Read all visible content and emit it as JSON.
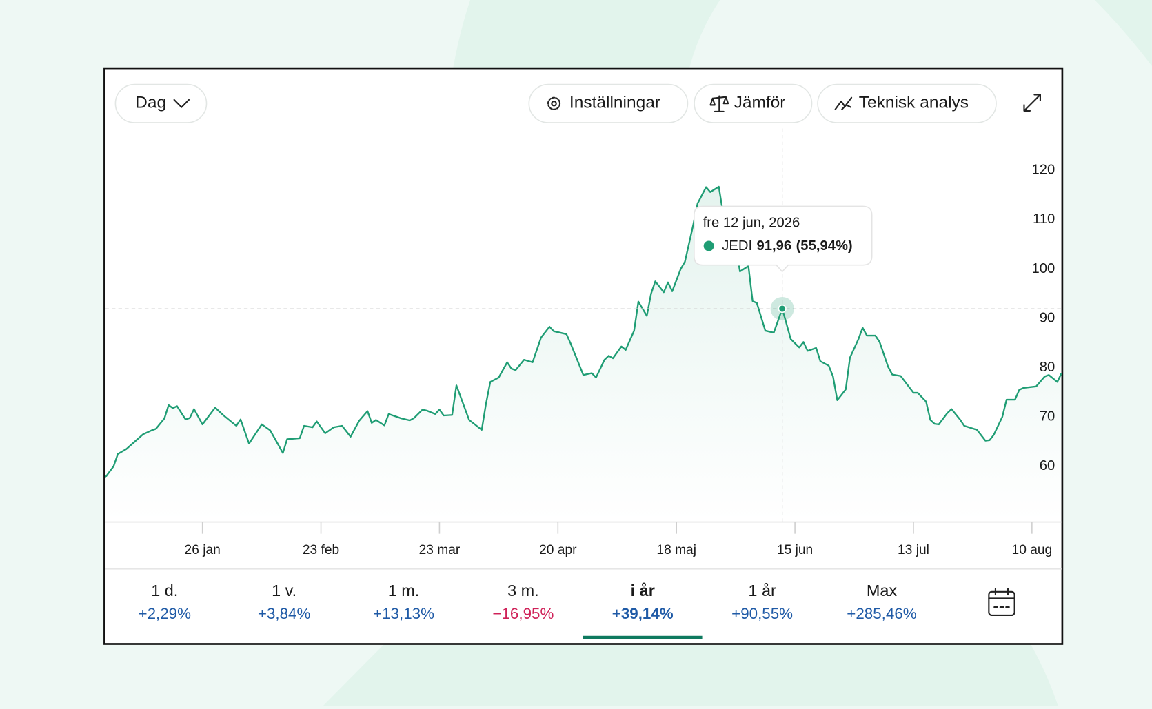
{
  "toolbar": {
    "interval": "Dag",
    "settings": "Inställningar",
    "compare": "Jämför",
    "analysis": "Teknisk analys"
  },
  "chart_data": {
    "type": "line",
    "x": [
      "2026-01-03",
      "2026-01-05",
      "2026-01-06",
      "2026-01-08",
      "2026-01-10",
      "2026-01-12",
      "2026-01-14",
      "2026-01-15",
      "2026-01-17",
      "2026-01-18",
      "2026-01-19",
      "2026-01-20",
      "2026-01-22",
      "2026-01-23",
      "2026-01-24",
      "2026-01-26",
      "2026-01-29",
      "2026-01-31",
      "2026-02-03",
      "2026-02-04",
      "2026-02-06",
      "2026-02-09",
      "2026-02-11",
      "2026-02-14",
      "2026-02-15",
      "2026-02-18",
      "2026-02-19",
      "2026-02-21",
      "2026-02-22",
      "2026-02-24",
      "2026-02-26",
      "2026-02-28",
      "2026-03-02",
      "2026-03-04",
      "2026-03-06",
      "2026-03-07",
      "2026-03-08",
      "2026-03-10",
      "2026-03-11",
      "2026-03-14",
      "2026-03-16",
      "2026-03-17",
      "2026-03-19",
      "2026-03-20",
      "2026-03-22",
      "2026-03-23",
      "2026-03-24",
      "2026-03-26",
      "2026-03-27",
      "2026-03-30",
      "2026-04-02",
      "2026-04-03",
      "2026-04-04",
      "2026-04-06",
      "2026-04-08",
      "2026-04-09",
      "2026-04-10",
      "2026-04-12",
      "2026-04-14",
      "2026-04-16",
      "2026-04-18",
      "2026-04-19",
      "2026-04-22",
      "2026-04-23",
      "2026-04-26",
      "2026-04-28",
      "2026-04-29",
      "2026-05-01",
      "2026-05-02",
      "2026-05-03",
      "2026-05-05",
      "2026-05-06",
      "2026-05-08",
      "2026-05-09",
      "2026-05-11",
      "2026-05-12",
      "2026-05-13",
      "2026-05-15",
      "2026-05-16",
      "2026-05-17",
      "2026-05-19",
      "2026-05-20",
      "2026-05-22",
      "2026-05-23",
      "2026-05-25",
      "2026-05-26",
      "2026-05-28",
      "2026-05-29",
      "2026-05-30",
      "2026-06-01",
      "2026-06-02",
      "2026-06-04",
      "2026-06-05",
      "2026-06-06",
      "2026-06-08",
      "2026-06-10",
      "2026-06-12",
      "2026-06-14",
      "2026-06-16",
      "2026-06-17",
      "2026-06-18",
      "2026-06-20",
      "2026-06-21",
      "2026-06-23",
      "2026-06-24",
      "2026-06-25",
      "2026-06-27",
      "2026-06-28",
      "2026-06-30",
      "2026-07-01",
      "2026-07-02",
      "2026-07-04",
      "2026-07-05",
      "2026-07-07",
      "2026-07-08",
      "2026-07-10",
      "2026-07-13",
      "2026-07-14",
      "2026-07-16",
      "2026-07-17",
      "2026-07-18",
      "2026-07-19",
      "2026-07-21",
      "2026-07-22",
      "2026-07-24",
      "2026-07-25",
      "2026-07-28",
      "2026-07-30",
      "2026-07-31",
      "2026-08-01",
      "2026-08-03",
      "2026-08-04",
      "2026-08-06",
      "2026-08-07",
      "2026-08-08",
      "2026-08-11",
      "2026-08-13",
      "2026-08-14",
      "2026-08-16",
      "2026-08-17"
    ],
    "series": [
      {
        "name": "JEDI",
        "color": "#1f9d74",
        "values": [
          57.7,
          60,
          62.5,
          63.5,
          65,
          66.5,
          67.3,
          67.6,
          69.7,
          72.4,
          71.8,
          72.2,
          69.5,
          69.8,
          71.6,
          68.5,
          71.9,
          70.3,
          68.2,
          69.5,
          64.6,
          68.5,
          67.3,
          62.7,
          65.5,
          65.7,
          68.2,
          67.9,
          69.1,
          66.7,
          67.9,
          68.2,
          66,
          69.2,
          71.2,
          68.8,
          69.4,
          68.3,
          70.6,
          69.7,
          69.3,
          69.8,
          71.5,
          71.3,
          70.6,
          71.5,
          70.3,
          70.4,
          76.4,
          69.4,
          67.4,
          72.7,
          77.1,
          78,
          81.1,
          79.8,
          79.5,
          81.6,
          81.1,
          86.1,
          88.3,
          87.4,
          86.8,
          84.9,
          78.5,
          78.9,
          78,
          81.6,
          82.4,
          81.9,
          84.3,
          83.6,
          87.5,
          93.4,
          90.5,
          95,
          97.5,
          95.3,
          97.3,
          95.5,
          100,
          101.5,
          109.1,
          113.3,
          116.6,
          115.6,
          116.7,
          111.4,
          109.6,
          104.7,
          99.5,
          100.6,
          93.5,
          93.1,
          87.5,
          87.1,
          91.96,
          85.8,
          84.1,
          85.2,
          83.4,
          84,
          81.3,
          80.4,
          78.2,
          73.4,
          75.6,
          82,
          85.8,
          88.1,
          86.5,
          86.5,
          85.2,
          80.2,
          78.6,
          78.3,
          74.9,
          74.9,
          73.1,
          69.4,
          68.6,
          68.5,
          70.8,
          71.6,
          69.5,
          68.2,
          67.4,
          65.2,
          65.3,
          66.4,
          70,
          73.5,
          73.5,
          75.5,
          75.9,
          76.2,
          78.2,
          78.5,
          77.1,
          78.9
        ]
      }
    ],
    "xlim": [
      "2026-01-03",
      "2026-08-17"
    ],
    "xticks": [
      {
        "value": "2026-01-26",
        "label": "26 jan"
      },
      {
        "value": "2026-02-23",
        "label": "23 feb"
      },
      {
        "value": "2026-03-23",
        "label": "23 mar"
      },
      {
        "value": "2026-04-20",
        "label": "20 apr"
      },
      {
        "value": "2026-05-18",
        "label": "18 maj"
      },
      {
        "value": "2026-06-15",
        "label": "15 jun"
      },
      {
        "value": "2026-07-13",
        "label": "13 jul"
      },
      {
        "value": "2026-08-10",
        "label": "10 aug"
      }
    ],
    "ylim": [
      48.7,
      128.5
    ],
    "yticks": [
      60,
      70,
      80,
      90,
      100,
      110,
      120
    ],
    "cursor_x": "2026-06-12"
  },
  "tooltip": {
    "date": "fre 12 jun, 2026",
    "name": "JEDI",
    "value": "91,96",
    "change": "(55,94%)"
  },
  "periods": [
    {
      "label": "1 d.",
      "change": "+2,29%"
    },
    {
      "label": "1 v.",
      "change": "+3,84%"
    },
    {
      "label": "1 m.",
      "change": "+13,13%"
    },
    {
      "label": "3 m.",
      "change": "−16,95%"
    },
    {
      "label": "i år",
      "change": "+39,14%"
    },
    {
      "label": "1 år",
      "change": "+90,55%"
    },
    {
      "label": "Max",
      "change": "+285,46%"
    }
  ],
  "active_period": 4
}
